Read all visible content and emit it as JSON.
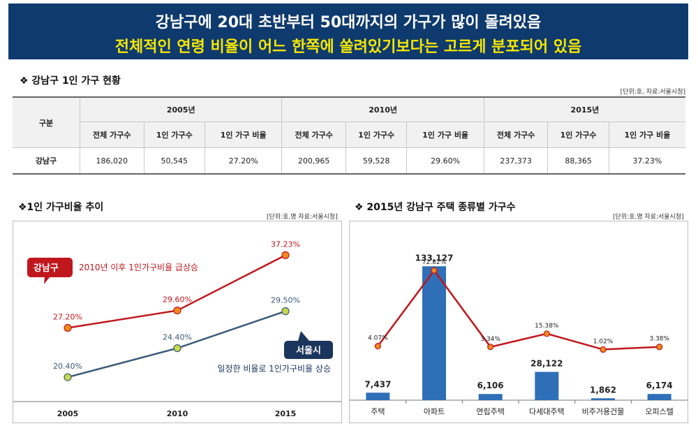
{
  "banner": {
    "line1": "강남구에 20대 초반부터 50대까지의 가구가 많이 몰려있음",
    "line2": "전체적인 연령 비율이 어느 한쪽에 쏠려있기보다는 고르게 분포되어 있음"
  },
  "table_section": {
    "title": "❖ 강남구 1인 가구 현황",
    "unit": "[단위:호, 자료:서울시청]",
    "row_header": "구분",
    "years": [
      "2005년",
      "2010년",
      "2015년"
    ],
    "subheaders": [
      "전체 가구수",
      "1인 가구수",
      "1인 가구 비율"
    ],
    "row": {
      "label": "강남구",
      "values": [
        "186,020",
        "50,545",
        "27.20%",
        "200,965",
        "59,528",
        "29.60%",
        "237,373",
        "88,365",
        "37.23%"
      ]
    }
  },
  "line_section": {
    "title": "❖1인 가구비율 추이",
    "unit": "[단위:호,명 자료:서울시청]"
  },
  "bar_section": {
    "title": "❖ 2015년 강남구 주택 종류별 가구수",
    "unit": "[단위:호,명 자료:서울시청]"
  },
  "chart_data": [
    {
      "type": "line",
      "x": [
        "2005",
        "2010",
        "2015"
      ],
      "series": [
        {
          "name": "강남구",
          "values": [
            27.2,
            29.6,
            37.23
          ],
          "labels": [
            "27.20%",
            "29.60%",
            "37.23%"
          ],
          "color": "#c0171d",
          "marker": "#f08a1c"
        },
        {
          "name": "서울시",
          "values": [
            20.4,
            24.4,
            29.5
          ],
          "labels": [
            "20.40%",
            "24.40%",
            "29.50%"
          ],
          "color": "#3c5a78",
          "marker": "#c8d94a"
        }
      ],
      "callouts": [
        {
          "badge": "강남구",
          "text": "2010년 이후 1인가구비율 급상승",
          "color": "#c0171d"
        },
        {
          "badge": "서울시",
          "text": "일정한 비율로 1인가구비율 상승",
          "color": "#1b355d"
        }
      ],
      "ylim": [
        18,
        39
      ],
      "grid": false
    },
    {
      "type": "bar",
      "categories": [
        "주택",
        "아파트",
        "연립주택",
        "다세대주택",
        "비주거용건물",
        "오피스텔"
      ],
      "values": [
        7437,
        133127,
        6106,
        28122,
        1862,
        6174
      ],
      "value_labels": [
        "7,437",
        "133,127",
        "6,106",
        "28,122",
        "1,862",
        "6,174"
      ],
      "bar_color": "#2e6fb7",
      "ylim": [
        0,
        150000
      ],
      "overlay_line": {
        "values": [
          4.07,
          72.82,
          3.34,
          15.38,
          1.02,
          3.38
        ],
        "labels": [
          "4.07%",
          "72.82%",
          "3.34%",
          "15.38%",
          "1.02%",
          "3.38%"
        ],
        "color": "#c0171d",
        "marker": "#f08a1c",
        "ylim": [
          -45,
          92
        ]
      },
      "grid": false
    }
  ]
}
